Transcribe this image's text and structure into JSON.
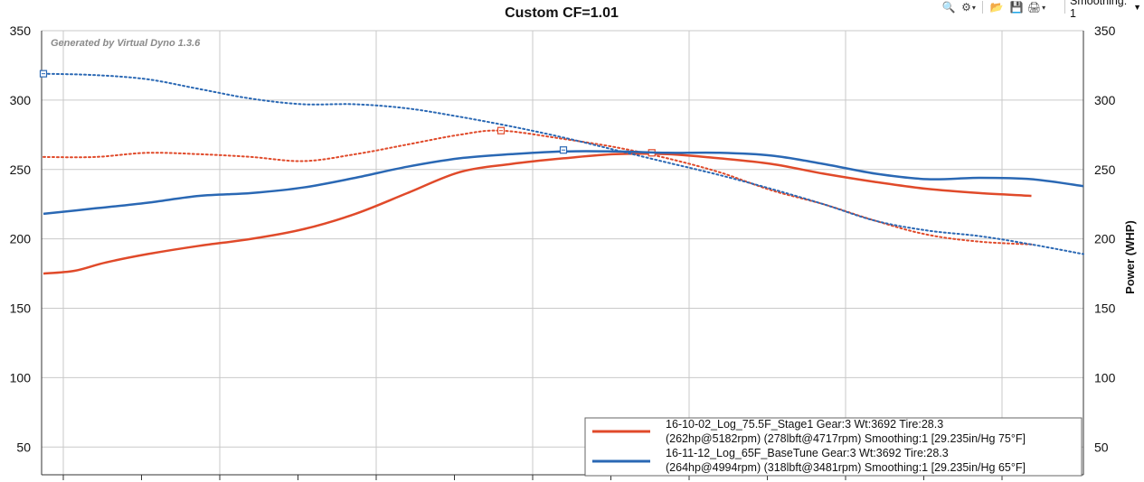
{
  "toolbar": {
    "icons": [
      "zoom-icon",
      "settings-icon",
      "folder-icon",
      "save-icon",
      "print-icon"
    ],
    "smoothing_label": "Smoothing: 1"
  },
  "chart_data": {
    "type": "line",
    "title": "Custom CF=1.01",
    "watermark": "Generated by Virtual Dyno 1.3.6",
    "ylabel_right": "Power (WHP)",
    "ylim": [
      30,
      350
    ],
    "yticks": [
      50,
      100,
      150,
      200,
      250,
      300,
      350
    ],
    "xlim": [
      0,
      1
    ],
    "grid": true,
    "legend_position": "bottom-right",
    "colors": {
      "red": "#e04a2a",
      "blue": "#2a68b4",
      "grid": "#c9c9c9",
      "axis": "#333333"
    },
    "series": [
      {
        "name": "16-10-02_Log_75.5F_Stage1 Gear:3 Wt:3692 Tire:28.3",
        "detail": "(262hp@5182rpm) (278lbft@4717rpm) Smoothing:1 [29.235in/Hg 75°F]",
        "color": "#e04a2a",
        "power": {
          "x": [
            0.0,
            0.03,
            0.06,
            0.1,
            0.15,
            0.2,
            0.25,
            0.3,
            0.35,
            0.4,
            0.45,
            0.5,
            0.55,
            0.6,
            0.65,
            0.7,
            0.75,
            0.8,
            0.85,
            0.9,
            0.95
          ],
          "y": [
            175,
            177,
            183,
            189,
            195,
            200,
            207,
            218,
            233,
            248,
            254,
            258,
            261,
            261,
            258,
            254,
            247,
            241,
            236,
            233,
            231
          ]
        },
        "torque": {
          "x": [
            0.0,
            0.05,
            0.1,
            0.15,
            0.2,
            0.25,
            0.3,
            0.35,
            0.4,
            0.44,
            0.5,
            0.55,
            0.6,
            0.65,
            0.7,
            0.75,
            0.8,
            0.85,
            0.9,
            0.95
          ],
          "y": [
            259,
            259,
            262,
            261,
            259,
            256,
            261,
            268,
            275,
            278,
            272,
            266,
            258,
            248,
            235,
            225,
            213,
            203,
            198,
            196
          ]
        },
        "markers": [
          {
            "x": 0.44,
            "y": 278
          },
          {
            "x": 0.585,
            "y": 262
          }
        ]
      },
      {
        "name": "16-11-12_Log_65F_BaseTune Gear:3 Wt:3692 Tire:28.3",
        "detail": "(264hp@4994rpm) (318lbft@3481rpm) Smoothing:1 [29.235in/Hg 65°F]",
        "color": "#2a68b4",
        "power": {
          "x": [
            0.0,
            0.05,
            0.1,
            0.15,
            0.2,
            0.25,
            0.3,
            0.35,
            0.4,
            0.45,
            0.5,
            0.55,
            0.6,
            0.65,
            0.7,
            0.75,
            0.8,
            0.85,
            0.9,
            0.95,
            1.0
          ],
          "y": [
            218,
            222,
            226,
            231,
            233,
            237,
            244,
            252,
            258,
            261,
            263,
            263,
            262,
            262,
            260,
            254,
            247,
            243,
            244,
            243,
            238
          ]
        },
        "torque": {
          "x": [
            0.0,
            0.05,
            0.1,
            0.15,
            0.2,
            0.25,
            0.3,
            0.35,
            0.4,
            0.45,
            0.5,
            0.55,
            0.6,
            0.65,
            0.7,
            0.75,
            0.8,
            0.85,
            0.9,
            0.95,
            1.0
          ],
          "y": [
            319,
            318,
            315,
            308,
            301,
            297,
            297,
            294,
            288,
            281,
            273,
            264,
            255,
            246,
            236,
            225,
            213,
            206,
            202,
            196,
            189
          ]
        },
        "markers": [
          {
            "x": 0.0,
            "y": 319
          },
          {
            "x": 0.5,
            "y": 264
          }
        ]
      }
    ]
  }
}
